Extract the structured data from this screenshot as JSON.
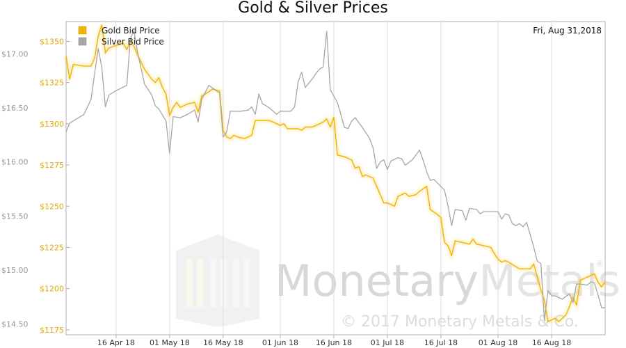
{
  "chart_data": {
    "type": "line",
    "title": "Gold & Silver Prices",
    "date_label": "Fri, Aug 31,2018",
    "watermark": {
      "brand_a": "Monetary",
      "brand_b": "Metals",
      "registered": "®",
      "copyright": "© 2017 Monetary Metals & Co."
    },
    "x_range": [
      "2018-04-02",
      "2018-08-31"
    ],
    "x_ticks": [
      {
        "date": "2018-04-16",
        "label": "16 Apr 18"
      },
      {
        "date": "2018-05-01",
        "label": "01 May 18"
      },
      {
        "date": "2018-05-16",
        "label": "16 May 18"
      },
      {
        "date": "2018-06-01",
        "label": "01 Jun 18"
      },
      {
        "date": "2018-06-16",
        "label": "16 Jun 18"
      },
      {
        "date": "2018-07-01",
        "label": "01 Jul 18"
      },
      {
        "date": "2018-07-16",
        "label": "16 Jul 18"
      },
      {
        "date": "2018-08-01",
        "label": "01 Aug 18"
      },
      {
        "date": "2018-08-16",
        "label": "16 Aug 18"
      }
    ],
    "y_left": {
      "range": [
        1172,
        1362
      ],
      "ticks": [
        "$1175",
        "$1200",
        "$1225",
        "$1250",
        "$1275",
        "$1300",
        "$1325",
        "$1350"
      ],
      "color": "#e0a800"
    },
    "y_right": {
      "range": [
        14.4,
        17.3
      ],
      "ticks": [
        "$14.50",
        "$15.00",
        "$15.50",
        "$16.00",
        "$16.50",
        "$17.00"
      ],
      "color": "#999999"
    },
    "grid": true,
    "legend_position": "top-left",
    "series": [
      {
        "name": "Gold Bid Price",
        "axis": "left",
        "color": "#f0b400",
        "points": [
          [
            "2018-04-02",
            1341
          ],
          [
            "2018-04-03",
            1327
          ],
          [
            "2018-04-04",
            1336
          ],
          [
            "2018-04-07",
            1335
          ],
          [
            "2018-04-09",
            1335
          ],
          [
            "2018-04-10",
            1340
          ],
          [
            "2018-04-11",
            1353
          ],
          [
            "2018-04-12",
            1360
          ],
          [
            "2018-04-13",
            1343
          ],
          [
            "2018-04-14",
            1346
          ],
          [
            "2018-04-18",
            1349
          ],
          [
            "2018-04-19",
            1345
          ],
          [
            "2018-04-20",
            1350
          ],
          [
            "2018-04-21",
            1347
          ],
          [
            "2018-04-22",
            1342
          ],
          [
            "2018-04-24",
            1333
          ],
          [
            "2018-04-26",
            1327
          ],
          [
            "2018-04-27",
            1325
          ],
          [
            "2018-04-28",
            1328
          ],
          [
            "2018-04-29",
            1322
          ],
          [
            "2018-04-30",
            1318
          ],
          [
            "2018-05-01",
            1305
          ],
          [
            "2018-05-02",
            1310
          ],
          [
            "2018-05-03",
            1313
          ],
          [
            "2018-05-04",
            1310
          ],
          [
            "2018-05-06",
            1312
          ],
          [
            "2018-05-08",
            1313
          ],
          [
            "2018-05-09",
            1307
          ],
          [
            "2018-05-10",
            1317
          ],
          [
            "2018-05-11",
            1318
          ],
          [
            "2018-05-13",
            1321
          ],
          [
            "2018-05-15",
            1320
          ],
          [
            "2018-05-16",
            1296
          ],
          [
            "2018-05-17",
            1292
          ],
          [
            "2018-05-18",
            1291
          ],
          [
            "2018-05-19",
            1293
          ],
          [
            "2018-05-20",
            1292
          ],
          [
            "2018-05-22",
            1291
          ],
          [
            "2018-05-24",
            1293
          ],
          [
            "2018-05-25",
            1302
          ],
          [
            "2018-05-29",
            1302
          ],
          [
            "2018-05-31",
            1300
          ],
          [
            "2018-06-01",
            1299
          ],
          [
            "2018-06-02",
            1300
          ],
          [
            "2018-06-03",
            1297
          ],
          [
            "2018-06-06",
            1297
          ],
          [
            "2018-06-07",
            1296
          ],
          [
            "2018-06-08",
            1298
          ],
          [
            "2018-06-10",
            1298
          ],
          [
            "2018-06-11",
            1299
          ],
          [
            "2018-06-13",
            1301
          ],
          [
            "2018-06-14",
            1303
          ],
          [
            "2018-06-15",
            1298
          ],
          [
            "2018-06-16",
            1304
          ],
          [
            "2018-06-17",
            1281
          ],
          [
            "2018-06-19",
            1280
          ],
          [
            "2018-06-21",
            1278
          ],
          [
            "2018-06-22",
            1273
          ],
          [
            "2018-06-23",
            1274
          ],
          [
            "2018-06-24",
            1268
          ],
          [
            "2018-06-25",
            1269
          ],
          [
            "2018-06-27",
            1267
          ],
          [
            "2018-06-29",
            1257
          ],
          [
            "2018-06-30",
            1252
          ],
          [
            "2018-07-01",
            1252
          ],
          [
            "2018-07-02",
            1251
          ],
          [
            "2018-07-03",
            1250
          ],
          [
            "2018-07-04",
            1256
          ],
          [
            "2018-07-06",
            1258
          ],
          [
            "2018-07-07",
            1256
          ],
          [
            "2018-07-09",
            1257
          ],
          [
            "2018-07-10",
            1259
          ],
          [
            "2018-07-12",
            1262
          ],
          [
            "2018-07-13",
            1248
          ],
          [
            "2018-07-15",
            1245
          ],
          [
            "2018-07-16",
            1243
          ],
          [
            "2018-07-17",
            1228
          ],
          [
            "2018-07-18",
            1226
          ],
          [
            "2018-07-19",
            1220
          ],
          [
            "2018-07-20",
            1229
          ],
          [
            "2018-07-22",
            1228
          ],
          [
            "2018-07-24",
            1227
          ],
          [
            "2018-07-25",
            1230
          ],
          [
            "2018-07-26",
            1227
          ],
          [
            "2018-07-28",
            1226
          ],
          [
            "2018-07-30",
            1225
          ],
          [
            "2018-07-31",
            1221
          ],
          [
            "2018-08-01",
            1218
          ],
          [
            "2018-08-02",
            1216
          ],
          [
            "2018-08-03",
            1217
          ],
          [
            "2018-08-04",
            1216
          ],
          [
            "2018-08-07",
            1212
          ],
          [
            "2018-08-08",
            1212
          ],
          [
            "2018-08-10",
            1212
          ],
          [
            "2018-08-11",
            1215
          ],
          [
            "2018-08-13",
            1199
          ],
          [
            "2018-08-14",
            1193
          ],
          [
            "2018-08-15",
            1180
          ],
          [
            "2018-08-17",
            1182
          ],
          [
            "2018-08-18",
            1180
          ],
          [
            "2018-08-20",
            1184
          ],
          [
            "2018-08-21",
            1189
          ],
          [
            "2018-08-22",
            1195
          ],
          [
            "2018-08-23",
            1190
          ],
          [
            "2018-08-24",
            1205
          ],
          [
            "2018-08-26",
            1207
          ],
          [
            "2018-08-28",
            1209
          ],
          [
            "2018-08-29",
            1204
          ],
          [
            "2018-08-30",
            1201
          ],
          [
            "2018-08-31",
            1204
          ]
        ]
      },
      {
        "name": "Silver Bid Price",
        "axis": "right",
        "color": "#a6a6a6",
        "points": [
          [
            "2018-04-02",
            16.28
          ],
          [
            "2018-04-03",
            16.36
          ],
          [
            "2018-04-04",
            16.38
          ],
          [
            "2018-04-07",
            16.44
          ],
          [
            "2018-04-09",
            16.58
          ],
          [
            "2018-04-10",
            16.82
          ],
          [
            "2018-04-11",
            17.05
          ],
          [
            "2018-04-12",
            16.88
          ],
          [
            "2018-04-13",
            16.51
          ],
          [
            "2018-04-14",
            16.62
          ],
          [
            "2018-04-16",
            16.66
          ],
          [
            "2018-04-19",
            16.71
          ],
          [
            "2018-04-20",
            17.14
          ],
          [
            "2018-04-21",
            17.22
          ],
          [
            "2018-04-22",
            17.02
          ],
          [
            "2018-04-24",
            16.72
          ],
          [
            "2018-04-26",
            16.62
          ],
          [
            "2018-04-27",
            16.52
          ],
          [
            "2018-04-28",
            16.49
          ],
          [
            "2018-04-30",
            16.38
          ],
          [
            "2018-05-01",
            16.08
          ],
          [
            "2018-05-02",
            16.42
          ],
          [
            "2018-05-04",
            16.41
          ],
          [
            "2018-05-06",
            16.44
          ],
          [
            "2018-05-08",
            16.48
          ],
          [
            "2018-05-09",
            16.37
          ],
          [
            "2018-05-10",
            16.58
          ],
          [
            "2018-05-12",
            16.71
          ],
          [
            "2018-05-14",
            16.66
          ],
          [
            "2018-05-15",
            16.64
          ],
          [
            "2018-05-16",
            16.23
          ],
          [
            "2018-05-17",
            16.28
          ],
          [
            "2018-05-18",
            16.47
          ],
          [
            "2018-05-21",
            16.47
          ],
          [
            "2018-05-23",
            16.48
          ],
          [
            "2018-05-24",
            16.51
          ],
          [
            "2018-05-25",
            16.44
          ],
          [
            "2018-05-26",
            16.63
          ],
          [
            "2018-05-27",
            16.54
          ],
          [
            "2018-05-29",
            16.5
          ],
          [
            "2018-05-31",
            16.44
          ],
          [
            "2018-06-01",
            16.47
          ],
          [
            "2018-06-02",
            16.47
          ],
          [
            "2018-06-04",
            16.47
          ],
          [
            "2018-06-05",
            16.51
          ],
          [
            "2018-06-06",
            16.74
          ],
          [
            "2018-06-07",
            16.83
          ],
          [
            "2018-06-08",
            16.69
          ],
          [
            "2018-06-10",
            16.77
          ],
          [
            "2018-06-11",
            16.82
          ],
          [
            "2018-06-12",
            16.86
          ],
          [
            "2018-06-13",
            16.88
          ],
          [
            "2018-06-14",
            17.21
          ],
          [
            "2018-06-15",
            16.67
          ],
          [
            "2018-06-17",
            16.55
          ],
          [
            "2018-06-19",
            16.32
          ],
          [
            "2018-06-20",
            16.31
          ],
          [
            "2018-06-21",
            16.38
          ],
          [
            "2018-06-22",
            16.41
          ],
          [
            "2018-06-24",
            16.32
          ],
          [
            "2018-06-26",
            16.22
          ],
          [
            "2018-06-27",
            16.13
          ],
          [
            "2018-06-28",
            15.94
          ],
          [
            "2018-06-29",
            16.0
          ],
          [
            "2018-06-30",
            16.02
          ],
          [
            "2018-07-01",
            15.93
          ],
          [
            "2018-07-02",
            16.01
          ],
          [
            "2018-07-04",
            16.04
          ],
          [
            "2018-07-05",
            16.03
          ],
          [
            "2018-07-06",
            15.97
          ],
          [
            "2018-07-08",
            16.02
          ],
          [
            "2018-07-10",
            16.11
          ],
          [
            "2018-07-11",
            16.02
          ],
          [
            "2018-07-12",
            15.91
          ],
          [
            "2018-07-13",
            15.83
          ],
          [
            "2018-07-14",
            15.84
          ],
          [
            "2018-07-17",
            15.74
          ],
          [
            "2018-07-18",
            15.59
          ],
          [
            "2018-07-19",
            15.41
          ],
          [
            "2018-07-20",
            15.56
          ],
          [
            "2018-07-22",
            15.55
          ],
          [
            "2018-07-23",
            15.46
          ],
          [
            "2018-07-24",
            15.57
          ],
          [
            "2018-07-26",
            15.56
          ],
          [
            "2018-07-27",
            15.52
          ],
          [
            "2018-07-28",
            15.54
          ],
          [
            "2018-07-31",
            15.54
          ],
          [
            "2018-08-01",
            15.54
          ],
          [
            "2018-08-02",
            15.47
          ],
          [
            "2018-08-03",
            15.52
          ],
          [
            "2018-08-04",
            15.51
          ],
          [
            "2018-08-05",
            15.43
          ],
          [
            "2018-08-06",
            15.41
          ],
          [
            "2018-08-07",
            15.43
          ],
          [
            "2018-08-08",
            15.4
          ],
          [
            "2018-08-09",
            15.44
          ],
          [
            "2018-08-10",
            15.33
          ],
          [
            "2018-08-11",
            15.21
          ],
          [
            "2018-08-12",
            15.08
          ],
          [
            "2018-08-13",
            15.06
          ],
          [
            "2018-08-14",
            14.53
          ],
          [
            "2018-08-15",
            14.81
          ],
          [
            "2018-08-16",
            14.76
          ],
          [
            "2018-08-17",
            14.76
          ],
          [
            "2018-08-19",
            14.73
          ],
          [
            "2018-08-21",
            14.78
          ],
          [
            "2018-08-22",
            14.7
          ],
          [
            "2018-08-23",
            14.87
          ],
          [
            "2018-08-24",
            14.87
          ],
          [
            "2018-08-26",
            14.86
          ],
          [
            "2018-08-27",
            14.89
          ],
          [
            "2018-08-28",
            14.88
          ],
          [
            "2018-08-29",
            14.77
          ],
          [
            "2018-08-30",
            14.65
          ],
          [
            "2018-08-31",
            14.65
          ]
        ]
      }
    ]
  }
}
